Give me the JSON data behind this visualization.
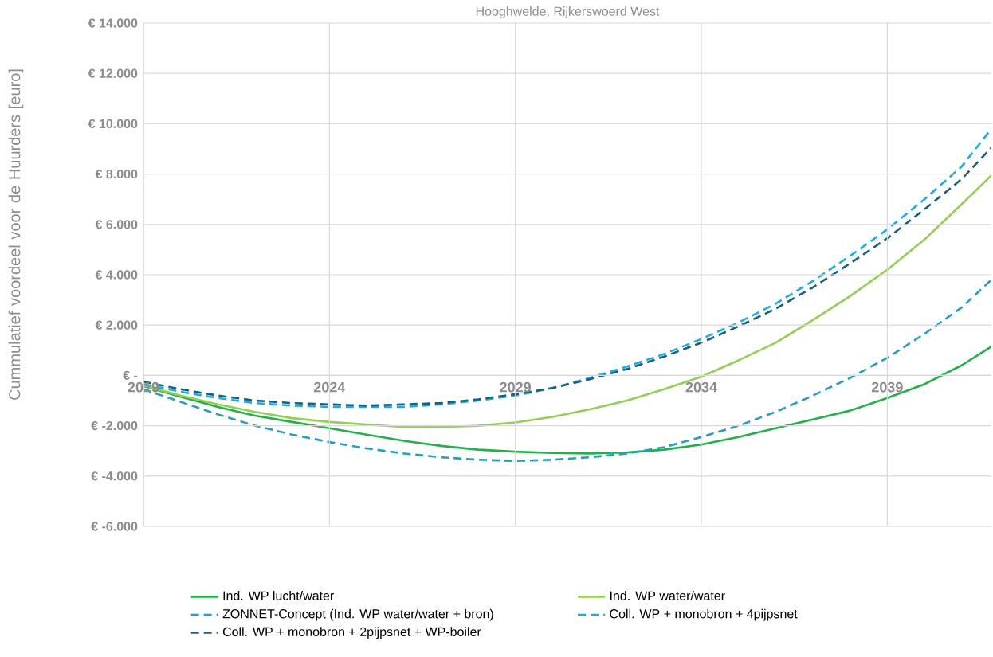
{
  "chart_data": {
    "type": "line",
    "title": "Hooghwelde, Rijkerswoerd West",
    "ylabel": "Cummulatief voordeel voor de Huurders [euro]",
    "x": [
      2019,
      2020,
      2021,
      2022,
      2023,
      2024,
      2025,
      2026,
      2027,
      2028,
      2029,
      2030,
      2031,
      2032,
      2033,
      2034,
      2035,
      2036,
      2037,
      2038,
      2039,
      2040,
      2041,
      2041.8
    ],
    "series": [
      {
        "name": "Ind. WP lucht/water",
        "color": "#1db446",
        "line_style": "solid",
        "values": [
          -430,
          -850,
          -1250,
          -1600,
          -1850,
          -2100,
          -2350,
          -2600,
          -2800,
          -2950,
          -3030,
          -3080,
          -3100,
          -3060,
          -2950,
          -2750,
          -2450,
          -2100,
          -1750,
          -1400,
          -900,
          -350,
          400,
          1150
        ]
      },
      {
        "name": "Ind. WP water/water",
        "color": "#92d050",
        "line_style": "solid",
        "values": [
          -400,
          -800,
          -1150,
          -1450,
          -1700,
          -1850,
          -1950,
          -2050,
          -2050,
          -2000,
          -1870,
          -1650,
          -1350,
          -1000,
          -550,
          -50,
          600,
          1300,
          2200,
          3150,
          4200,
          5400,
          6800,
          7950
        ]
      },
      {
        "name": "ZONNET-Concept (Ind. WP water/water + bron)",
        "color": "#1fa0c8",
        "line_style": "dashed",
        "values": [
          -550,
          -1050,
          -1550,
          -2000,
          -2350,
          -2650,
          -2900,
          -3100,
          -3250,
          -3350,
          -3400,
          -3350,
          -3250,
          -3100,
          -2850,
          -2450,
          -2000,
          -1450,
          -800,
          -100,
          700,
          1650,
          2700,
          3800
        ]
      },
      {
        "name": "Coll. WP + monobron + 4pijpsnet",
        "color": "#12b0e6",
        "line_style": "dashed",
        "values": [
          -350,
          -650,
          -900,
          -1100,
          -1200,
          -1250,
          -1250,
          -1250,
          -1150,
          -1000,
          -800,
          -500,
          -100,
          350,
          850,
          1450,
          2100,
          2850,
          3750,
          4750,
          5800,
          7000,
          8300,
          9800
        ]
      },
      {
        "name": "Coll. WP + monobron + 2pijpsnet + WP-boiler",
        "color": "#17607e",
        "line_style": "dashed",
        "values": [
          -250,
          -550,
          -800,
          -1000,
          -1100,
          -1150,
          -1200,
          -1150,
          -1100,
          -950,
          -750,
          -500,
          -150,
          250,
          750,
          1300,
          1950,
          2650,
          3500,
          4450,
          5450,
          6600,
          7800,
          9050
        ]
      }
    ],
    "xlim": [
      2019,
      2041.8
    ],
    "ylim": [
      -6000,
      14000
    ],
    "xticks": [
      2019,
      2024,
      2029,
      2034,
      2039
    ],
    "yticks": [
      {
        "value": -6000,
        "label": "€ -6.000"
      },
      {
        "value": -4000,
        "label": "€ -4.000"
      },
      {
        "value": -2000,
        "label": "€ -2.000"
      },
      {
        "value": 0,
        "label": "€ -"
      },
      {
        "value": 2000,
        "label": "€ 2.000"
      },
      {
        "value": 4000,
        "label": "€ 4.000"
      },
      {
        "value": 6000,
        "label": "€ 6.000"
      },
      {
        "value": 8000,
        "label": "€ 8.000"
      },
      {
        "value": 10000,
        "label": "€ 10.000"
      },
      {
        "value": 12000,
        "label": "€ 12.000"
      },
      {
        "value": 14000,
        "label": "€ 14.000"
      }
    ],
    "grid": true,
    "legend": "bottom"
  }
}
